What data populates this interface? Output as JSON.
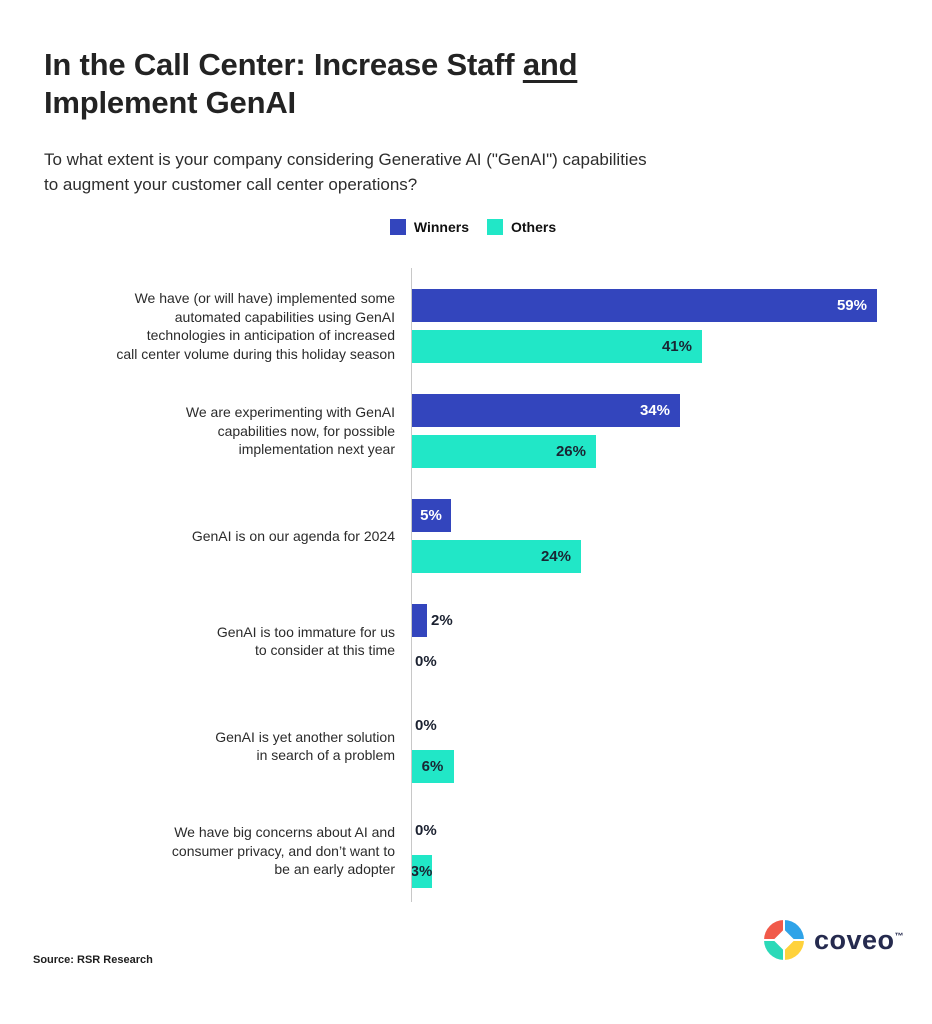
{
  "page": {
    "title": {
      "line1_prefix": "In the Call Center: Increase Staff ",
      "line1_underlined": "and",
      "line2": "Implement GenAI"
    },
    "subtitle": "To what extent is your company considering Generative AI (\"GenAI\") capabilities to augment your customer call center operations?",
    "source": "Source: RSR Research",
    "logo": {
      "wordmark": "coveo",
      "trademark": "™"
    }
  },
  "colors": {
    "winners_blue": "#3345BD",
    "others_teal": "#21E7C7",
    "label_on_blue": "#FFFFFF",
    "label_on_teal": "#1A2533",
    "label_outside": "#1B2130",
    "axis_gray": "#C8C8C8"
  },
  "chart_data": {
    "type": "bar",
    "orientation": "horizontal",
    "unit": "%",
    "title": "In the Call Center: Increase Staff and Implement GenAI",
    "xlabel": "",
    "ylabel": "",
    "xlim": [
      0,
      63
    ],
    "grid": false,
    "legend_position": "top-center",
    "value_labels": true,
    "categories": [
      "We have (or will have) implemented some automated capabilities using GenAI technologies in anticipation of increased call center volume during this holiday season",
      "We are experimenting with GenAI capabilities now, for possible implementation next year",
      "GenAI is on our agenda for 2024",
      "GenAI is too immature for us to consider at this time",
      "GenAI is yet another solution in search of a problem",
      "We have big concerns about AI and consumer privacy, and don’t want to be an early adopter"
    ],
    "categories_lines": [
      [
        "We have (or will have) implemented some",
        "automated capabilities using GenAI",
        "technologies in anticipation of increased",
        "call center volume during this holiday season"
      ],
      [
        "We are experimenting with GenAI",
        "capabilities now, for possible",
        "implementation next year"
      ],
      [
        "GenAI is on our agenda for 2024"
      ],
      [
        "GenAI is too immature for us",
        "to consider at this time"
      ],
      [
        "GenAI is yet another solution",
        "in search of a problem"
      ],
      [
        "We have big concerns about AI and",
        "consumer privacy, and don’t want to",
        "be an early adopter"
      ]
    ],
    "series": [
      {
        "name": "Winners",
        "color": "#3345BD",
        "values": [
          59,
          34,
          5,
          2,
          0,
          0
        ]
      },
      {
        "name": "Others",
        "color": "#21E7C7",
        "values": [
          41,
          26,
          24,
          0,
          6,
          3
        ]
      }
    ]
  }
}
